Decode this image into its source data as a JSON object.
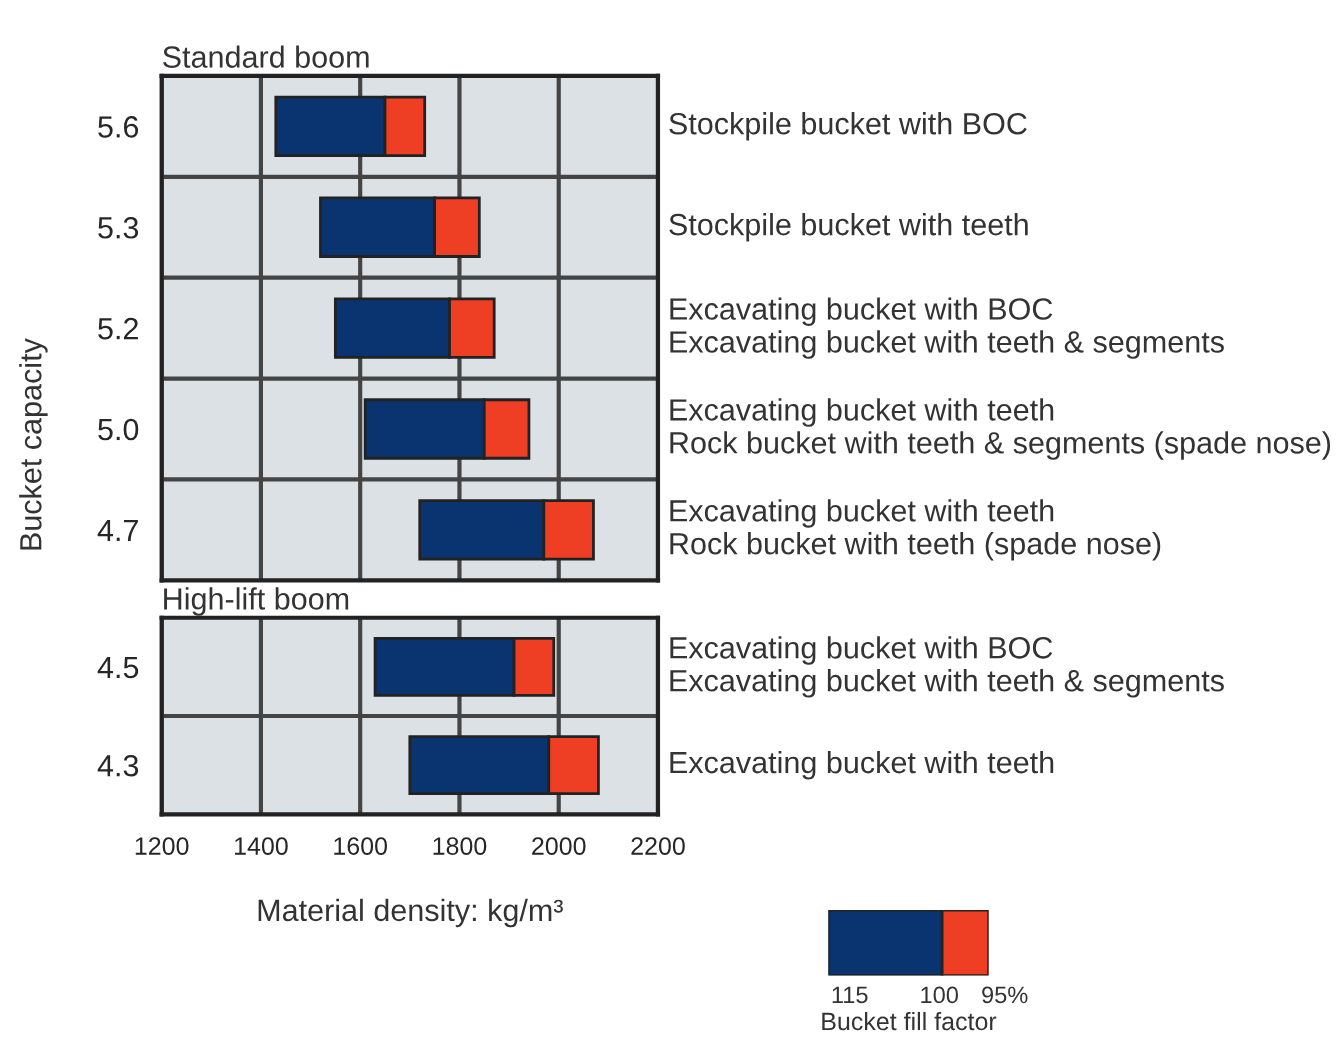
{
  "chart_data": [
    {
      "type": "bar",
      "orientation": "horizontal",
      "title": "Standard boom",
      "ylabel": "Bucket capacity",
      "categories": [
        "5.6",
        "5.3",
        "5.2",
        "5.0",
        "4.7"
      ],
      "series": [
        {
          "color": "#0a3470",
          "base": [
            1430,
            1520,
            1550,
            1610,
            1720
          ],
          "values": [
            220,
            230,
            230,
            240,
            250
          ]
        },
        {
          "color": "#ee3e23",
          "base": [
            1650,
            1750,
            1780,
            1850,
            1970
          ],
          "values": [
            80,
            90,
            90,
            90,
            100
          ]
        }
      ],
      "xlim": [
        1200,
        2200
      ],
      "xticks": [
        1200,
        1400,
        1600,
        1800,
        2000,
        2200
      ],
      "tick_labels": "y",
      "grid": true,
      "annotations": [
        "Stockpile bucket with BOC",
        "Stockpile bucket with teeth",
        "Excavating bucket with BOC\nExcavating bucket with teeth & segments",
        "Excavating bucket with teeth\nRock bucket with teeth & segments (spade nose)",
        "Excavating bucket with teeth\nRock bucket with teeth (spade nose)"
      ]
    },
    {
      "type": "bar",
      "orientation": "horizontal",
      "title": "High-lift boom",
      "xlabel": "Material density: kg/m³",
      "legend_title": "Bucket fill factor",
      "categories": [
        "4.5",
        "4.3"
      ],
      "series": [
        {
          "color": "#0a3470",
          "base": [
            1630,
            1700
          ],
          "values": [
            280,
            280
          ]
        },
        {
          "color": "#ee3e23",
          "base": [
            1910,
            1980
          ],
          "values": [
            80,
            100
          ]
        }
      ],
      "xlim": [
        1200,
        2200
      ],
      "xticks": [
        1200,
        1400,
        1600,
        1800,
        2000,
        2200
      ],
      "grid": true,
      "annotations": [
        "Excavating bucket with BOC\nExcavating bucket with teeth & segments",
        "Excavating bucket with teeth",
        "115",
        "100",
        "95%"
      ]
    }
  ]
}
